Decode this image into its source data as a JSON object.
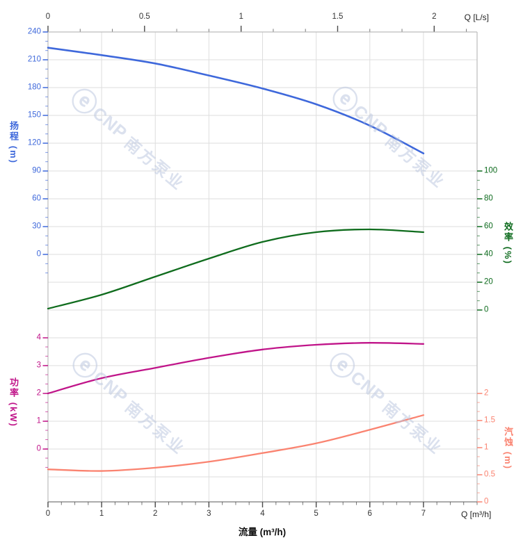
{
  "axes": {
    "top": {
      "label": "Q [L/s]",
      "ticks": [
        "0",
        "0.5",
        "1",
        "1.5",
        "2"
      ]
    },
    "bottom": {
      "label": "Q [m³/h]",
      "title": "流量 (m³/h)",
      "ticks": [
        "0",
        "1",
        "2",
        "3",
        "4",
        "5",
        "6",
        "7"
      ]
    },
    "head": {
      "title": "扬程",
      "unit": "(m)",
      "color": "#3E68DB",
      "ticks": [
        "240",
        "210",
        "180",
        "150",
        "120",
        "90",
        "60",
        "30",
        "0"
      ]
    },
    "power": {
      "title": "功率",
      "unit": "(kW)",
      "color": "#C01489",
      "ticks": [
        "4",
        "3",
        "2",
        "1",
        "0"
      ]
    },
    "efficiency": {
      "title": "效率",
      "unit": "(%)",
      "color": "#0E6B1E",
      "ticks": [
        "100",
        "80",
        "60",
        "40",
        "20",
        "0"
      ]
    },
    "npsh": {
      "title": "汽蚀",
      "unit": "(m)",
      "color": "#FA8370",
      "ticks": [
        "2",
        "1.5",
        "1",
        "0.5",
        "0"
      ]
    }
  },
  "chart_data": {
    "type": "line",
    "title": "",
    "xlabel": "流量 (m³/h)",
    "x2label": "Q [L/s]",
    "x": [
      0,
      1,
      2,
      3,
      4,
      5,
      6,
      7
    ],
    "xlim_m3h": [
      0,
      8
    ],
    "x2lim_ls": [
      0,
      2.22
    ],
    "grid": true,
    "series": [
      {
        "name": "扬程",
        "unit": "m",
        "axis": "head",
        "color": "#3E68DB",
        "ylim": [
          0,
          240
        ],
        "values": [
          223,
          215,
          206,
          193,
          179,
          162,
          139,
          109
        ]
      },
      {
        "name": "效率",
        "unit": "%",
        "axis": "efficiency",
        "color": "#0F6C1D",
        "ylim": [
          0,
          100
        ],
        "values": [
          1,
          11,
          24,
          37,
          49,
          56,
          58,
          56
        ]
      },
      {
        "name": "功率",
        "unit": "kW",
        "axis": "power",
        "color": "#C01489",
        "ylim": [
          0,
          4
        ],
        "values": [
          2.0,
          2.55,
          2.92,
          3.28,
          3.58,
          3.75,
          3.82,
          3.78
        ]
      },
      {
        "name": "汽蚀",
        "unit": "m",
        "axis": "npsh",
        "color": "#FA8370",
        "ylim": [
          0,
          2
        ],
        "values": [
          0.6,
          0.57,
          0.63,
          0.74,
          0.9,
          1.08,
          1.33,
          1.6
        ]
      }
    ]
  },
  "watermark": {
    "logo": "ⓔ",
    "brand": "CNP",
    "brand_cn": "南方泵业"
  },
  "colors": {
    "grid": "#dedede",
    "border": "#bcbcbc",
    "x_axis_line": "#8f8f8f",
    "x_tick": "#4a4a4a",
    "x_tick_label": "#333333"
  }
}
